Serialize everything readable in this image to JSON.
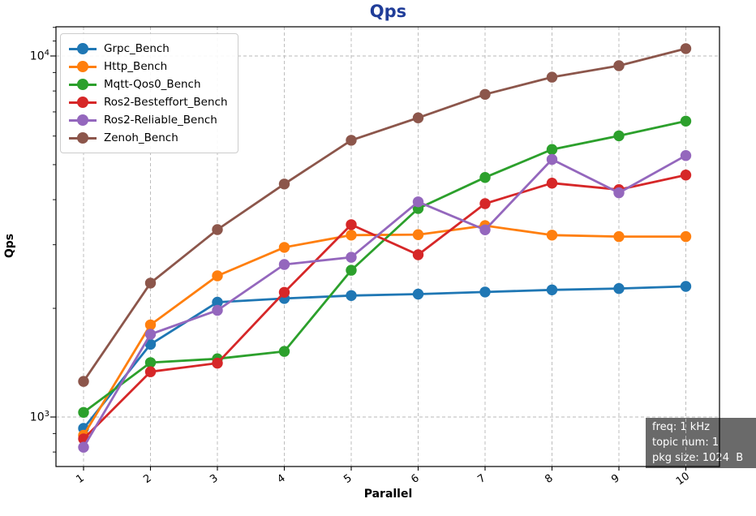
{
  "title": {
    "text": "Qps",
    "color": "#203d99"
  },
  "chart_data": {
    "type": "line",
    "title": "Qps",
    "xlabel": "Parallel",
    "ylabel": "Qps",
    "yscale": "log",
    "grid": true,
    "legend_position": "upper left",
    "x": [
      1,
      2,
      3,
      4,
      5,
      6,
      7,
      8,
      9,
      10
    ],
    "x_tick_labels": [
      "1",
      "2",
      "3",
      "4",
      "5",
      "6",
      "7",
      "8",
      "9",
      "10"
    ],
    "y_major_ticks": [
      {
        "value": 1000,
        "base": "10",
        "exp": "3"
      },
      {
        "value": 10000,
        "base": "10",
        "exp": "4"
      }
    ],
    "y_minor_tick_values": [
      800,
      900,
      2000,
      3000,
      4000,
      5000,
      6000,
      7000,
      8000,
      9000,
      11000,
      12000
    ],
    "xlim": [
      0.55,
      10.51
    ],
    "ylim": [
      729,
      12050
    ],
    "series": [
      {
        "name": "Grpc_Bench",
        "color": "#1f77b4",
        "values": [
          930,
          1590,
          2080,
          2130,
          2170,
          2190,
          2220,
          2250,
          2270,
          2300
        ]
      },
      {
        "name": "Http_Bench",
        "color": "#ff7f0e",
        "values": [
          890,
          1800,
          2460,
          2950,
          3190,
          3200,
          3390,
          3190,
          3160,
          3160
        ]
      },
      {
        "name": "Mqtt-Qos0_Bench",
        "color": "#2ca02c",
        "values": [
          1030,
          1415,
          1450,
          1520,
          2550,
          3780,
          4610,
          5510,
          6010,
          6600
        ]
      },
      {
        "name": "Ros2-Besteffort_Bench",
        "color": "#d62728",
        "values": [
          870,
          1335,
          1410,
          2215,
          3410,
          2815,
          3900,
          4445,
          4265,
          4680
        ]
      },
      {
        "name": "Ros2-Reliable_Bench",
        "color": "#9467bd",
        "values": [
          825,
          1695,
          1975,
          2645,
          2770,
          3945,
          3300,
          5170,
          4180,
          5300
        ]
      },
      {
        "name": "Zenoh_Bench",
        "color": "#8c564b",
        "values": [
          1255,
          2350,
          3305,
          4420,
          5840,
          6740,
          7830,
          8735,
          9400,
          10480
        ]
      }
    ]
  },
  "info_box": {
    "bg": "#6a6a6a",
    "text_color": "#ffffff",
    "lines": [
      "freq: 1 kHz",
      "topic num: 1",
      "pkg size: 1024  B"
    ]
  }
}
